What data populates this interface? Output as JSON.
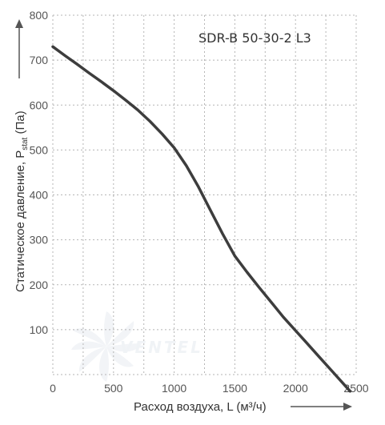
{
  "chart_data": {
    "type": "line",
    "model_label": "SDR-B 50-30-2 L3",
    "xlabel": "Расход воздуха, L (м³/ч)",
    "ylabel": {
      "main": "Статическое давление, P",
      "sub": "stat",
      "tail": " (Па)"
    },
    "xlim": [
      0,
      2500
    ],
    "ylim": [
      0,
      800
    ],
    "x_ticks": [
      "0",
      "500",
      "1000",
      "1500",
      "2000",
      "2500"
    ],
    "y_ticks": [
      "100",
      "200",
      "300",
      "400",
      "500",
      "600",
      "700",
      "800"
    ],
    "grid": true,
    "watermark": "VENTEL",
    "series": [
      {
        "x": [
          0,
          100,
          200,
          300,
          400,
          500,
          600,
          700,
          800,
          900,
          1000,
          1100,
          1200,
          1300,
          1400,
          1500,
          1600,
          1700,
          1800,
          1900,
          2000,
          2100,
          2200,
          2300,
          2400,
          2450
        ],
        "y": [
          730,
          710,
          691,
          671,
          652,
          632,
          611,
          589,
          564,
          536,
          505,
          465,
          418,
          365,
          313,
          264,
          228,
          194,
          161,
          128,
          98,
          68,
          38,
          8,
          -22,
          -37
        ]
      }
    ]
  }
}
